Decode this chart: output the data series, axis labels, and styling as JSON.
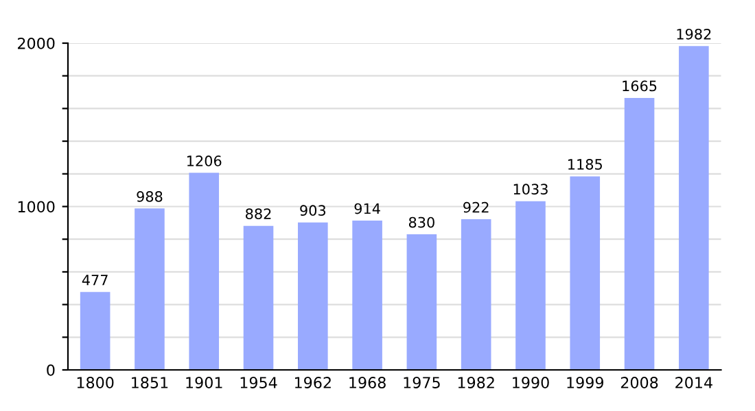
{
  "chart_data": {
    "type": "bar",
    "categories": [
      "1800",
      "1851",
      "1901",
      "1954",
      "1962",
      "1968",
      "1975",
      "1982",
      "1990",
      "1999",
      "2008",
      "2014"
    ],
    "values": [
      477,
      988,
      1206,
      882,
      903,
      914,
      830,
      922,
      1033,
      1185,
      1665,
      1982
    ],
    "color": "#99aaff",
    "ylim": [
      0,
      2000
    ],
    "yticks": [
      0,
      {
        "value": 200,
        "label": null
      },
      {
        "value": 400,
        "label": null
      },
      {
        "value": 600,
        "label": null
      },
      {
        "value": 800,
        "label": null
      },
      1000,
      {
        "value": 1200,
        "label": null
      },
      {
        "value": 1400,
        "label": null
      },
      {
        "value": 1600,
        "label": null
      },
      {
        "value": 1800,
        "label": null
      },
      2000
    ],
    "grid": "y",
    "data_labels": true
  }
}
